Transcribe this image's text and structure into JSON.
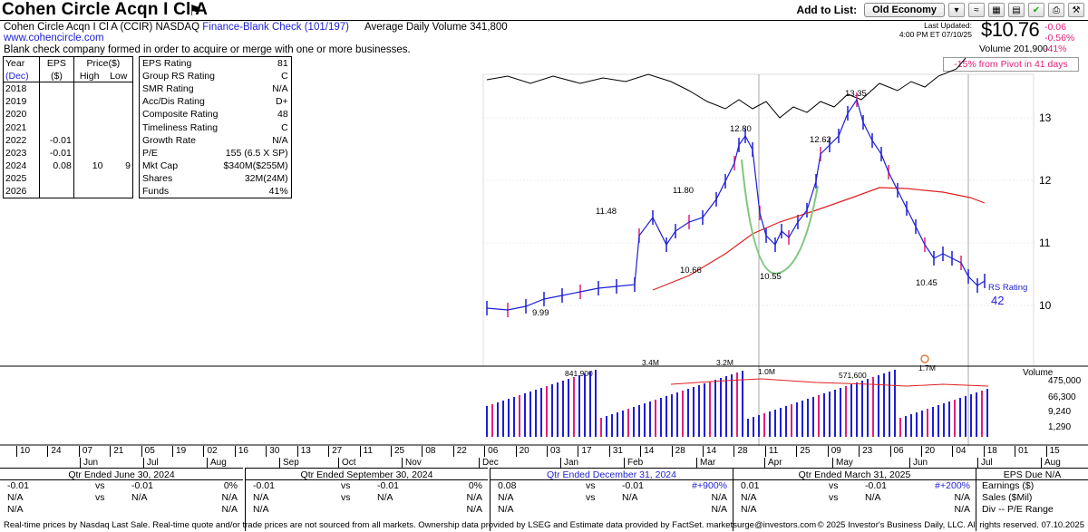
{
  "header": {
    "title": "Cohen Circle Acqn I Cl A",
    "add_to_list_label": "Add to List:",
    "list_selected": "Old Economy"
  },
  "company": {
    "name_line": "Cohen Circle Acqn I Cl A",
    "ticker_exchange": "(CCIR) NASDAQ",
    "industry": "Finance-Blank Check (101/197)",
    "avg_volume": "Average Daily Volume 341,800",
    "website": "www.cohencircle.com",
    "description": "Blank check company formed in order to acquire or merge with one or more businesses."
  },
  "quote": {
    "last_updated_label": "Last Updated:",
    "last_updated_time": "4:00 PM ET 07/10/25",
    "price": "$10.76",
    "change": "-0.06",
    "change_pct": "-0.56%",
    "volume": "Volume 201,900",
    "volume_pct": "-41%",
    "pivot_note": "-15% from Pivot in 41 days"
  },
  "years_table": {
    "headers": [
      "Year",
      "EPS",
      "Price($)",
      "(Dec)",
      "($)",
      "High",
      "Low"
    ],
    "rows": [
      {
        "year": "2018",
        "eps": "",
        "high": "",
        "low": ""
      },
      {
        "year": "2019",
        "eps": "",
        "high": "",
        "low": ""
      },
      {
        "year": "2020",
        "eps": "",
        "high": "",
        "low": ""
      },
      {
        "year": "2021",
        "eps": "",
        "high": "",
        "low": ""
      },
      {
        "year": "2022",
        "eps": "-0.01",
        "high": "",
        "low": ""
      },
      {
        "year": "2023",
        "eps": "-0.01",
        "high": "",
        "low": ""
      },
      {
        "year": "2024",
        "eps": "0.08",
        "high": "10",
        "low": "9"
      },
      {
        "year": "2025",
        "eps": "",
        "high": "",
        "low": ""
      },
      {
        "year": "2026",
        "eps": "",
        "high": "",
        "low": ""
      }
    ]
  },
  "ratings": [
    {
      "label": "EPS Rating",
      "value": "81"
    },
    {
      "label": "Group RS Rating",
      "value": "C"
    },
    {
      "label": "SMR Rating",
      "value": "N/A"
    },
    {
      "label": "Acc/Dis Rating",
      "value": "D+"
    },
    {
      "label": "Composite Rating",
      "value": "48"
    },
    {
      "label": "Timeliness Rating",
      "value": "C"
    },
    {
      "label": "Growth Rate",
      "value": "N/A"
    },
    {
      "label": "P/E",
      "value": "155 (6.5 X SP)"
    },
    {
      "label": "Mkt Cap",
      "value": "$340M($255M)"
    },
    {
      "label": "Shares",
      "value": "32M(24M)"
    },
    {
      "label": "Funds",
      "value": "41%"
    }
  ],
  "chart_data": {
    "type": "line",
    "price_axis_ticks": [
      "13",
      "12",
      "11",
      "10"
    ],
    "price_annotations": [
      "13.35",
      "12.80",
      "12.62",
      "11.80",
      "11.48",
      "10.66",
      "10.55",
      "10.45",
      "9.99"
    ],
    "rs_label": "RS Rating",
    "rs_value": "42",
    "volume_label": "Volume",
    "volume_ticks": [
      "475,000",
      "66,300",
      "9,240",
      "1,290"
    ],
    "volume_annotations": [
      "841,900",
      "3.4M",
      "3.2M",
      "1.0M",
      "571,600",
      "1.7M"
    ],
    "date_days": [
      "10",
      "24",
      "07",
      "21",
      "05",
      "19",
      "02",
      "16",
      "30",
      "13",
      "27",
      "11",
      "25",
      "08",
      "22",
      "06",
      "20",
      "03",
      "17",
      "31",
      "14",
      "28",
      "14",
      "28",
      "11",
      "25",
      "09",
      "23",
      "06",
      "20",
      "04",
      "18",
      "01",
      "15"
    ],
    "months": [
      "Jun",
      "Jul",
      "Aug",
      "Sep",
      "Oct",
      "Nov",
      "Dec",
      "Jan",
      "Feb",
      "Mar",
      "Apr",
      "May",
      "Jun",
      "Jul",
      "Aug"
    ],
    "price_series_approx": [
      {
        "x": "Dec",
        "y": 9.98
      },
      {
        "x": "Jan",
        "y": 10.1
      },
      {
        "x": "Jan",
        "y": 10.3
      },
      {
        "x": "Feb",
        "y": 10.7
      },
      {
        "x": "Feb",
        "y": 11.3
      },
      {
        "x": "Mar",
        "y": 11.0
      },
      {
        "x": "Mar",
        "y": 12.0
      },
      {
        "x": "Mar",
        "y": 12.8
      },
      {
        "x": "Apr",
        "y": 11.0
      },
      {
        "x": "Apr",
        "y": 11.4
      },
      {
        "x": "Apr",
        "y": 12.6
      },
      {
        "x": "May",
        "y": 13.35
      },
      {
        "x": "May",
        "y": 12.2
      },
      {
        "x": "Jun",
        "y": 11.2
      },
      {
        "x": "Jun",
        "y": 10.6
      },
      {
        "x": "Jul",
        "y": 10.76
      }
    ]
  },
  "quarters": [
    {
      "title": "Qtr Ended June 30, 2024",
      "highlight": false,
      "rows": [
        [
          "-0.01",
          "vs",
          "-0.01",
          "0%"
        ],
        [
          "N/A",
          "vs",
          "N/A",
          "N/A"
        ],
        [
          "N/A",
          "",
          "",
          "N/A"
        ]
      ]
    },
    {
      "title": "Qtr Ended September 30, 2024",
      "highlight": false,
      "rows": [
        [
          "-0.01",
          "vs",
          "-0.01",
          "0%"
        ],
        [
          "N/A",
          "vs",
          "N/A",
          "N/A"
        ],
        [
          "N/A",
          "",
          "",
          "N/A"
        ]
      ]
    },
    {
      "title": "Qtr Ended December 31, 2024",
      "highlight": true,
      "rows": [
        [
          "0.08",
          "vs",
          "-0.01",
          "#+900%"
        ],
        [
          "N/A",
          "vs",
          "N/A",
          "N/A"
        ],
        [
          "N/A",
          "",
          "",
          "N/A"
        ]
      ]
    },
    {
      "title": "Qtr Ended March 31, 2025",
      "highlight": false,
      "rows": [
        [
          "0.01",
          "vs",
          "-0.01",
          "#+200%"
        ],
        [
          "N/A",
          "vs",
          "N/A",
          "N/A"
        ],
        [
          "N/A",
          "",
          "",
          "N/A"
        ]
      ]
    }
  ],
  "eps_due": {
    "title": "EPS Due N/A",
    "items": [
      "Earnings ($)",
      "Sales ($Mil)",
      "Div -- P/E Range"
    ]
  },
  "footer": {
    "left": "Real-time prices by Nasdaq Last Sale. Real-time quote and/or trade prices are not sourced from all markets. Ownership data provided by LSEG and Estimate data provided by FactSet. marketsurge@investors.com",
    "right": "© 2025 Investor's Business Daily, LLC. All rights reserved.    07.10.2025"
  },
  "colors": {
    "accent_blue": "#1e1ed6",
    "magenta": "#e0207a",
    "ma_red": "#e02020",
    "cup_green": "#7ec77e"
  }
}
